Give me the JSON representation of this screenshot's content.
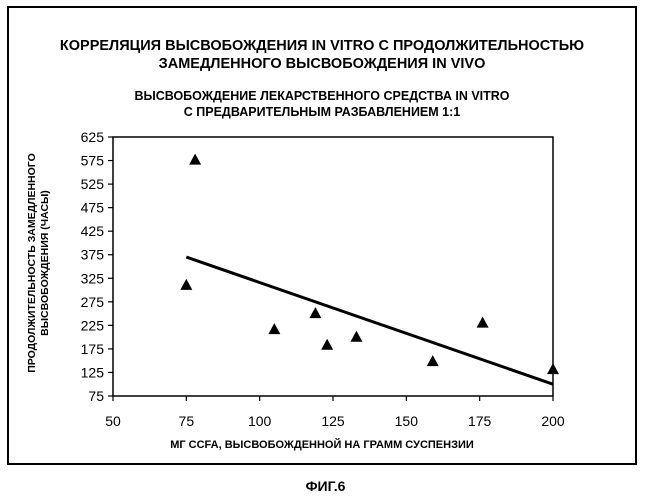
{
  "title": [
    "КОРРЕЛЯЦИЯ ВЫСВОБОЖДЕНИЯ IN VITRO С ПРОДОЛЖИТЕЛЬНОСТЬЮ",
    "ЗАМЕДЛЕННОГО ВЫСВОБОЖДЕНИЯ IN VIVO"
  ],
  "subtitle": [
    "ВЫСВОБОЖДЕНИЕ ЛЕКАРСТВЕННОГО СРЕДСТВА IN VITRO",
    "С ПРЕДВАРИТЕЛЬНЫМ РАЗБАВЛЕНИЕМ 1:1"
  ],
  "figure_label": "ФИГ.6",
  "chart_data": {
    "type": "scatter",
    "xlabel": "МГ CCFA, ВЫСВОБОЖДЕННОЙ НА ГРАММ СУСПЕНЗИИ",
    "ylabel": [
      "ПРОДОЛЖИТЕЛЬНОСТЬ ЗАМЕДЛЕННОГО",
      "ВЫСВОБОЖДЕНИЯ (ЧАСЫ)"
    ],
    "xlim": [
      50,
      200
    ],
    "ylim": [
      75,
      625
    ],
    "xticks": [
      50,
      75,
      100,
      125,
      150,
      175,
      200
    ],
    "yticks": [
      75,
      125,
      175,
      225,
      275,
      325,
      375,
      425,
      475,
      525,
      575,
      625
    ],
    "marker": "triangle",
    "points": [
      {
        "x": 75,
        "y": 312
      },
      {
        "x": 78,
        "y": 578
      },
      {
        "x": 105,
        "y": 218
      },
      {
        "x": 119,
        "y": 252
      },
      {
        "x": 123,
        "y": 185
      },
      {
        "x": 133,
        "y": 202
      },
      {
        "x": 159,
        "y": 150
      },
      {
        "x": 176,
        "y": 232
      },
      {
        "x": 200,
        "y": 133
      }
    ],
    "trendline": {
      "type": "linear",
      "x": [
        75,
        200
      ],
      "y": [
        370,
        100
      ]
    },
    "grid": false,
    "legend": "none"
  }
}
